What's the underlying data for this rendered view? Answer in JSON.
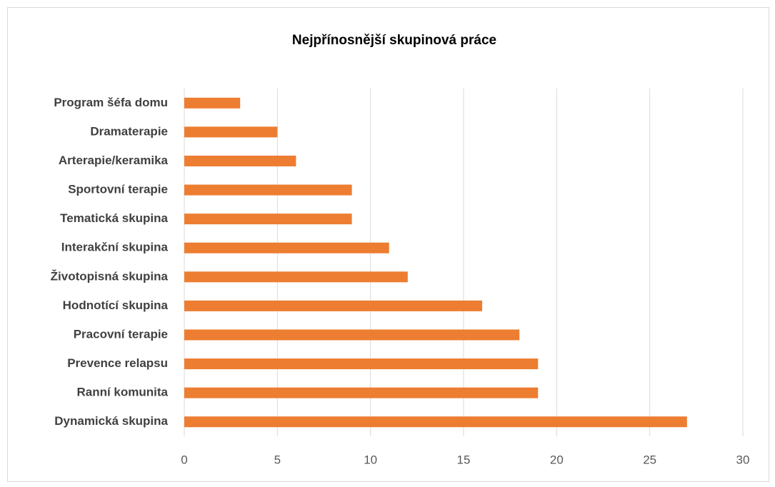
{
  "chart_data": {
    "type": "bar",
    "orientation": "horizontal",
    "title": "Nejpřínosnější skupinová práce",
    "categories": [
      "Program šéfa domu",
      "Dramaterapie",
      "Arterapie/keramika",
      "Sportovní terapie",
      "Tematická skupina",
      "Interakční skupina",
      "Životopisná skupina",
      "Hodnotící skupina",
      "Pracovní terapie",
      "Prevence relapsu",
      "Ranní komunita",
      "Dynamická skupina"
    ],
    "values": [
      3,
      5,
      6,
      9,
      9,
      11,
      12,
      16,
      18,
      19,
      19,
      27
    ],
    "color": "#ed7d31",
    "xlim": [
      0,
      30
    ],
    "xticks": [
      0,
      5,
      10,
      15,
      20,
      25,
      30
    ],
    "grid": true
  }
}
